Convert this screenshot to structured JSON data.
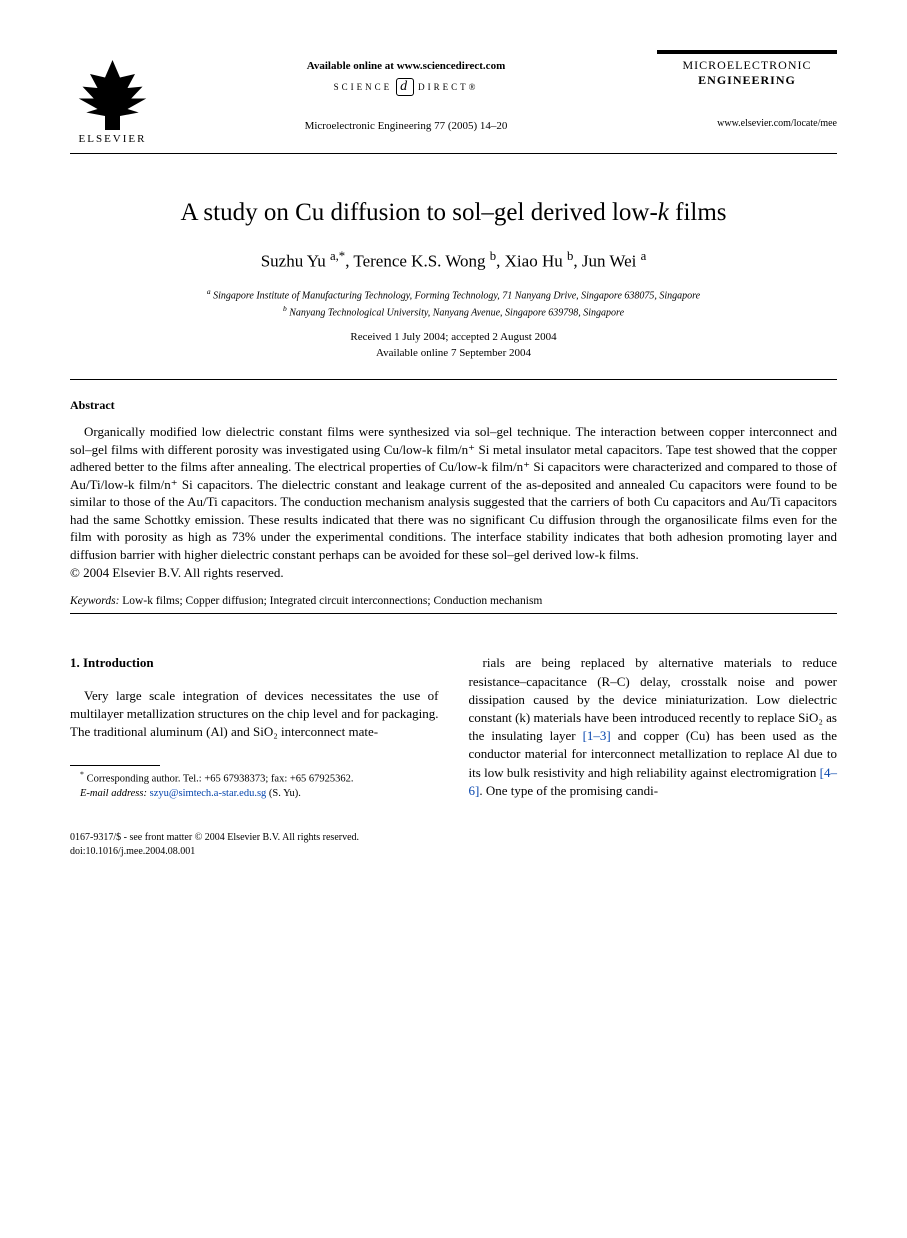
{
  "header": {
    "publisher": "ELSEVIER",
    "available_online": "Available online at www.sciencedirect.com",
    "science_direct_left": "SCIENCE",
    "science_direct_right": "DIRECT®",
    "journal_ref": "Microelectronic Engineering 77 (2005) 14–20",
    "journal_name_1": "MICROELECTRONIC",
    "journal_name_2": "ENGINEERING",
    "journal_url": "www.elsevier.com/locate/mee"
  },
  "title": "A study on Cu diffusion to sol–gel derived low-",
  "title_ital": "k",
  "title_end": " films",
  "authors_html": "Suzhu Yu <sup>a,*</sup>, Terence K.S. Wong <sup>b</sup>, Xiao Hu <sup>b</sup>, Jun Wei <sup>a</sup>",
  "affiliations": {
    "a": "Singapore Institute of Manufacturing Technology, Forming Technology, 71 Nanyang Drive, Singapore 638075, Singapore",
    "b": "Nanyang Technological University, Nanyang Avenue, Singapore 639798, Singapore"
  },
  "dates": {
    "received": "Received 1 July 2004; accepted 2 August 2004",
    "online": "Available online 7 September 2004"
  },
  "abstract": {
    "heading": "Abstract",
    "text": "Organically modified low dielectric constant films were synthesized via sol–gel technique. The interaction between copper interconnect and sol–gel films with different porosity was investigated using Cu/low-k film/n⁺ Si metal insulator metal capacitors. Tape test showed that the copper adhered better to the films after annealing. The electrical properties of Cu/low-k film/n⁺ Si capacitors were characterized and compared to those of Au/Ti/low-k film/n⁺ Si capacitors. The dielectric constant and leakage current of the as-deposited and annealed Cu capacitors were found to be similar to those of the Au/Ti capacitors. The conduction mechanism analysis suggested that the carriers of both Cu capacitors and Au/Ti capacitors had the same Schottky emission. These results indicated that there was no significant Cu diffusion through the organosilicate films even for the film with porosity as high as 73% under the experimental conditions. The interface stability indicates that both adhesion promoting layer and diffusion barrier with higher dielectric constant perhaps can be avoided for these sol–gel derived low-k films.",
    "copyright": "© 2004 Elsevier B.V. All rights reserved."
  },
  "keywords": {
    "label": "Keywords:",
    "text": " Low-k films; Copper diffusion; Integrated circuit interconnections; Conduction mechanism"
  },
  "intro": {
    "heading": "1. Introduction",
    "col1": "Very large scale integration of devices necessitates the use of multilayer metallization structures on the chip level and for packaging. The traditional aluminum (Al) and SiO₂ interconnect mate-",
    "col2_part1": "rials are being replaced by alternative materials to reduce resistance–capacitance (R–C) delay, crosstalk noise and power dissipation caused by the device miniaturization. Low dielectric constant (k) materials have been introduced recently to replace SiO₂ as the insulating layer ",
    "col2_ref1": "[1–3]",
    "col2_part2": " and copper (Cu) has been used as the conductor material for interconnect metallization to replace Al due to its low bulk resistivity and high reliability against electromigration ",
    "col2_ref2": "[4–6]",
    "col2_part3": ". One type of the promising candi-"
  },
  "footnote": {
    "corr": "Corresponding author. Tel.: +65 67938373; fax: +65 67925362.",
    "email_label": "E-mail address:",
    "email": "szyu@simtech.a-star.edu.sg",
    "email_who": " (S. Yu)."
  },
  "footer": {
    "line1": "0167-9317/$ - see front matter © 2004 Elsevier B.V. All rights reserved.",
    "line2": "doi:10.1016/j.mee.2004.08.001"
  }
}
